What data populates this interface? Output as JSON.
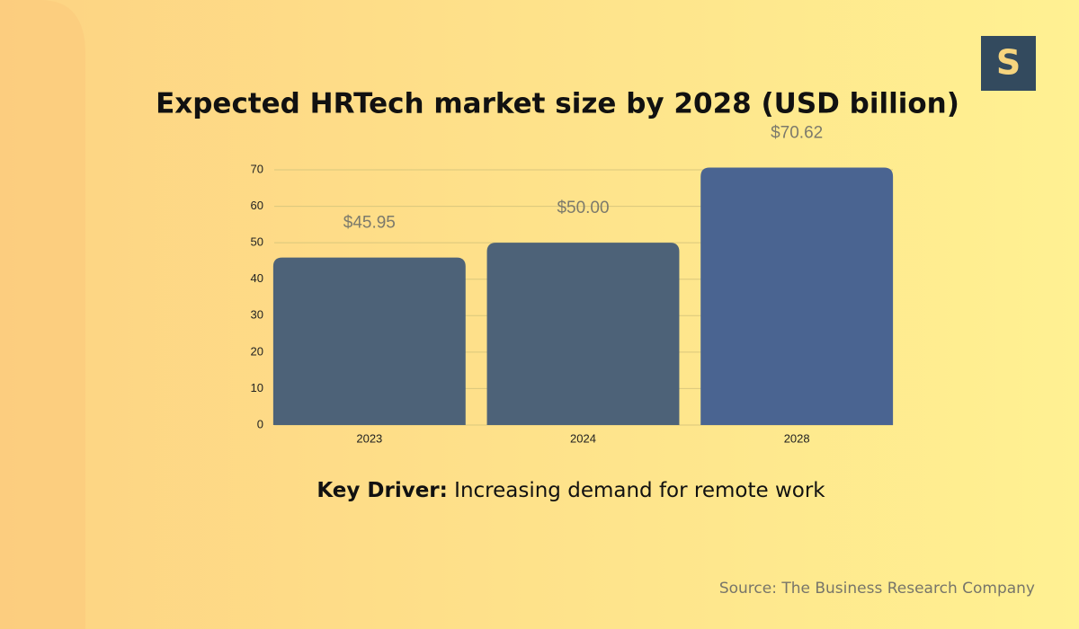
{
  "logo": "S",
  "chart_data": {
    "type": "bar",
    "title": "Expected HRTech market size by 2028 (USD billion)",
    "categories": [
      "2023",
      "2024",
      "2028"
    ],
    "values": [
      45.95,
      50.0,
      70.62
    ],
    "value_labels": [
      "$45.95",
      "$50.00",
      "$70.62"
    ],
    "colors": [
      "#4d6278",
      "#4d6278",
      "#4a6491"
    ],
    "ylim": [
      0,
      70
    ],
    "yticks": [
      0,
      10,
      20,
      30,
      40,
      50,
      60,
      70
    ],
    "grid": true,
    "annotation": {
      "label": "Key Driver:",
      "text": "Increasing demand for remote work"
    },
    "source": "Source: The Business Research Company"
  }
}
